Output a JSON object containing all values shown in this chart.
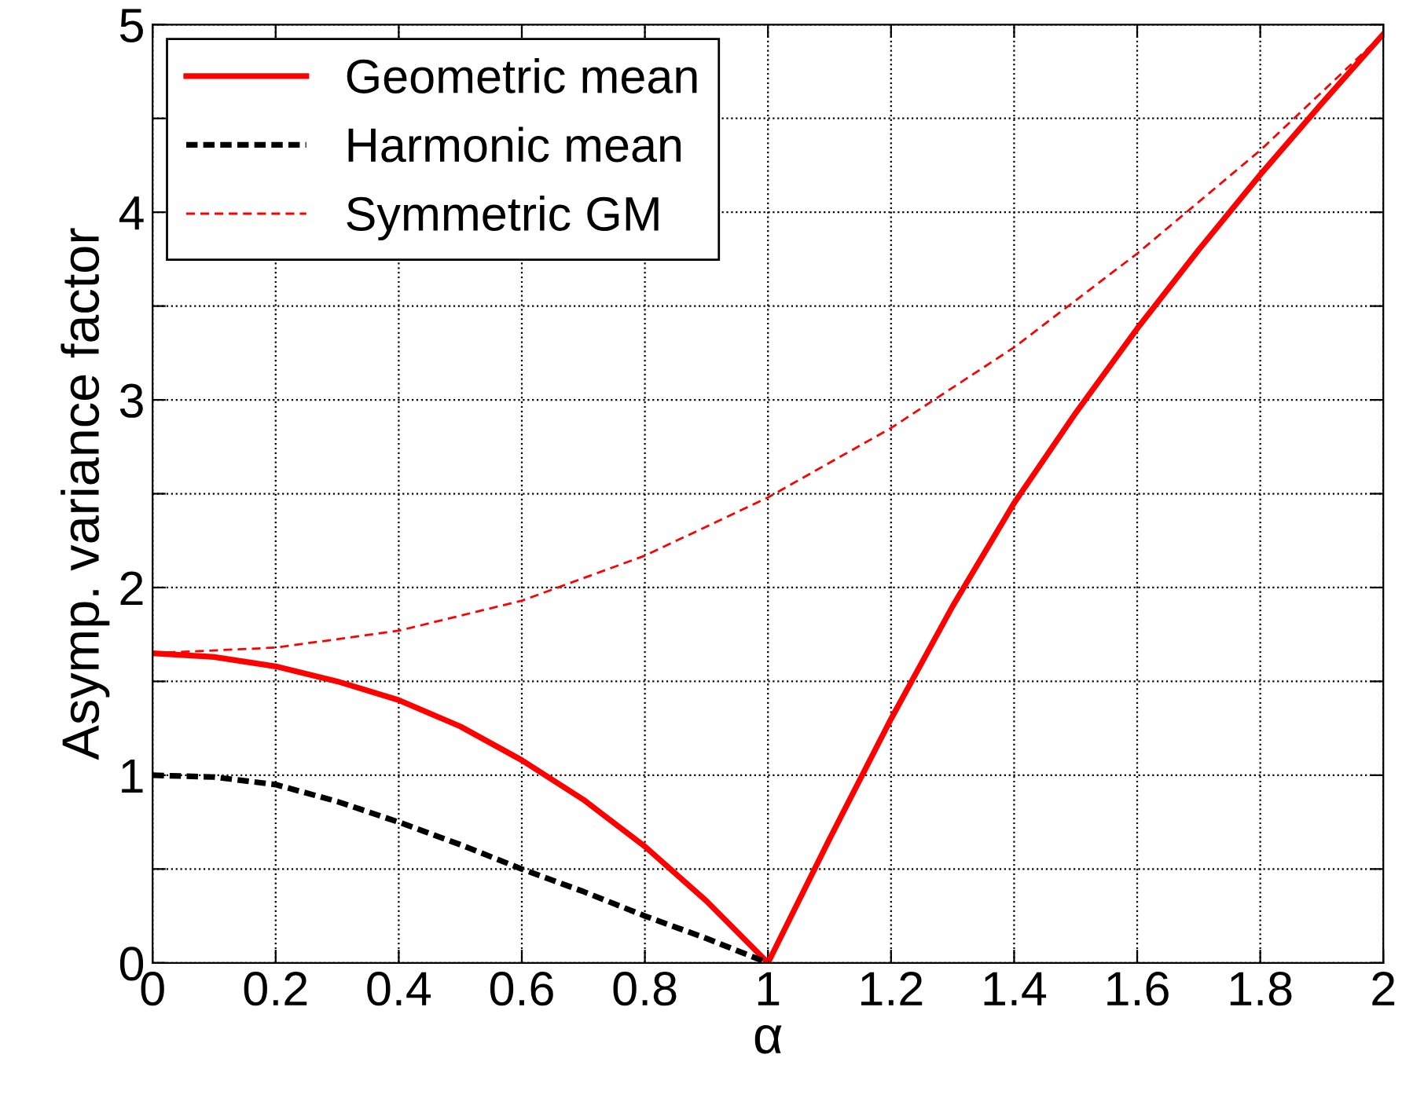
{
  "chart_data": {
    "type": "line",
    "xlabel": "α",
    "ylabel": "Asymp. variance factor",
    "xlim": [
      0,
      2
    ],
    "ylim": [
      0,
      5
    ],
    "xticks": [
      0,
      0.2,
      0.4,
      0.6,
      0.8,
      1,
      1.2,
      1.4,
      1.6,
      1.8,
      2
    ],
    "yticks": [
      0,
      {
        "value": 0.5,
        "label": null
      },
      1,
      {
        "value": 1.5,
        "label": null
      },
      2,
      {
        "value": 2.5,
        "label": null
      },
      3,
      {
        "value": 3.5,
        "label": null
      },
      4,
      {
        "value": 4.5,
        "label": null
      },
      5
    ],
    "grid": true,
    "legend": "top left",
    "series": [
      {
        "name": "Geometric mean",
        "color": "#ff0000",
        "line_style": "solid",
        "x": [
          0,
          0.1,
          0.2,
          0.3,
          0.4,
          0.5,
          0.6,
          0.7,
          0.8,
          0.9,
          1,
          1.1,
          1.2,
          1.3,
          1.4,
          1.5,
          1.6,
          1.7,
          1.8,
          1.9,
          2
        ],
        "values": [
          1.65,
          1.63,
          1.58,
          1.5,
          1.4,
          1.26,
          1.08,
          0.87,
          0.62,
          0.33,
          0,
          0.66,
          1.3,
          1.9,
          2.45,
          2.93,
          3.38,
          3.8,
          4.2,
          4.58,
          4.95
        ]
      },
      {
        "name": "Harmonic mean",
        "color": "#000000",
        "line_style": "dashed",
        "x": [
          0,
          0.1,
          0.2,
          0.3,
          0.4,
          0.5,
          0.6,
          0.7,
          0.8,
          0.9,
          1
        ],
        "values": [
          1.0,
          0.99,
          0.95,
          0.86,
          0.75,
          0.63,
          0.5,
          0.38,
          0.25,
          0.13,
          0
        ]
      },
      {
        "name": "Symmetric GM",
        "color": "#ff0000",
        "line_style": "dashed",
        "x": [
          0,
          0.2,
          0.4,
          0.6,
          0.8,
          1,
          1.2,
          1.4,
          1.6,
          1.8,
          2
        ],
        "values": [
          1.65,
          1.68,
          1.77,
          1.93,
          2.17,
          2.48,
          2.85,
          3.28,
          3.78,
          4.33,
          4.95
        ]
      }
    ]
  }
}
